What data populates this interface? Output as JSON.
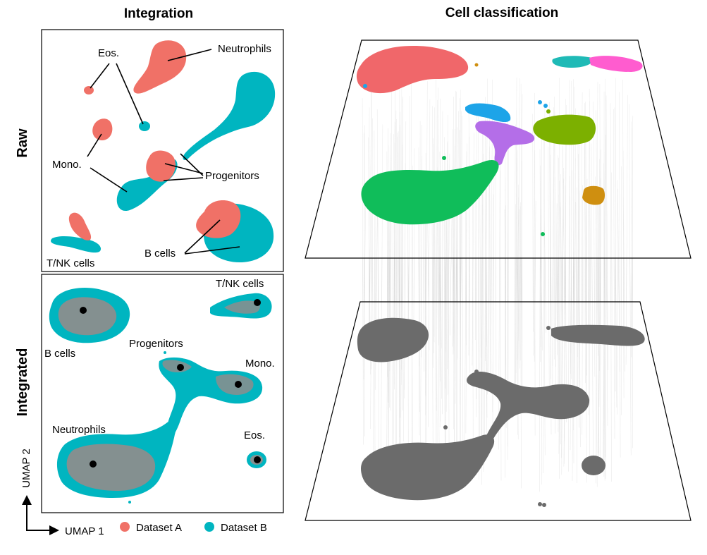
{
  "headers": {
    "integration": "Integration",
    "cell_classification": "Cell classification"
  },
  "rows": {
    "raw": "Raw",
    "integrated": "Integrated"
  },
  "raw_panel": {
    "labels": {
      "eos": "Eos.",
      "neutrophils": "Neutrophils",
      "mono": "Mono.",
      "progenitors": "Progenitors",
      "b_cells": "B cells",
      "tnk": "T/NK cells"
    }
  },
  "integrated_panel": {
    "labels": {
      "tnk": "T/NK cells",
      "b_cells": "B cells",
      "progenitors": "Progenitors",
      "mono": "Mono.",
      "neutrophils": "Neutrophils",
      "eos": "Eos."
    }
  },
  "axes": {
    "x": "UMAP 1",
    "y": "UMAP 2"
  },
  "legend": {
    "items": [
      {
        "label": "Dataset A",
        "color": "#f07167"
      },
      {
        "label": "Dataset B",
        "color": "#00b5c0"
      }
    ]
  },
  "colors": {
    "dataset_a": "#f07167",
    "dataset_b": "#00b5c0",
    "neutrophil_cluster": "#f0676a",
    "eos_cluster_teal": "#1fbab6",
    "eos_cluster_pink": "#ff5ccf",
    "progenitor_blue": "#1da4e8",
    "progenitor_purple": "#b46ee8",
    "mono_olive": "#7cb000",
    "bcell_green": "#10bd5a",
    "tnk_orange": "#cf8f10",
    "gray_cells": "#6b6b6b"
  }
}
